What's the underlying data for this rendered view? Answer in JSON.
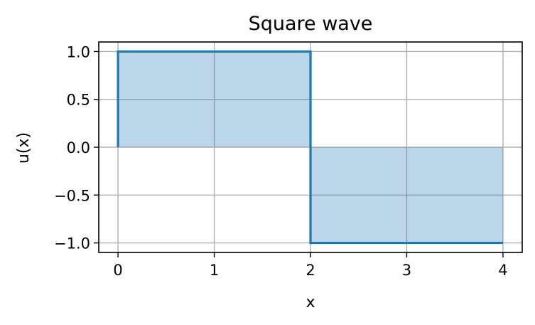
{
  "chart_data": {
    "type": "area",
    "title": "Square wave",
    "xlabel": "x",
    "ylabel": "u(x)",
    "xlim": [
      -0.2,
      4.2
    ],
    "ylim": [
      -1.1,
      1.1
    ],
    "xticks": [
      0,
      1,
      2,
      3,
      4
    ],
    "xtick_labels": [
      "0",
      "1",
      "2",
      "3",
      "4"
    ],
    "yticks": [
      1.0,
      0.5,
      0.0,
      -0.5,
      -1.0
    ],
    "ytick_labels": [
      "1.0",
      "0.5",
      "0.0",
      "−0.5",
      "−1.0"
    ],
    "grid": true,
    "series": [
      {
        "x": [
          0,
          0,
          2,
          2,
          4
        ],
        "y": [
          0,
          1,
          1,
          -1,
          -1
        ],
        "line_color": "#1f77b4",
        "fill_color": "#1f77b4",
        "fill_alpha": 0.3
      }
    ]
  }
}
